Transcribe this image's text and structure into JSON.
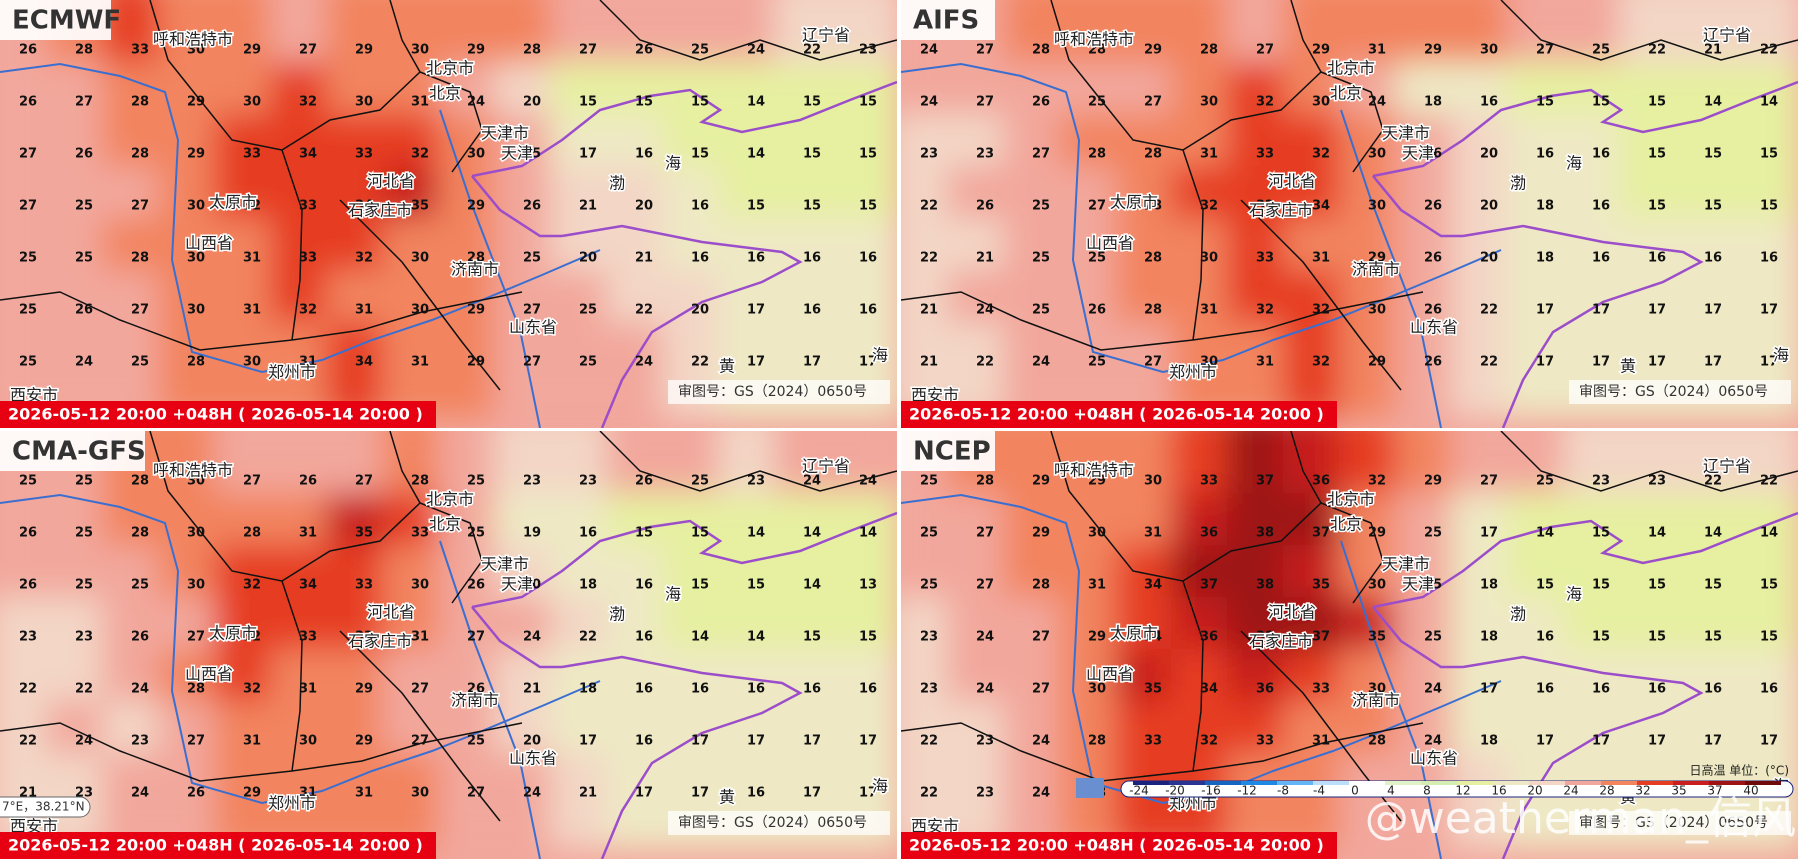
{
  "panels": [
    {
      "title": "ECMWF",
      "time": "2026-05-12 20:00 +048H ( 2026-05-14 20:00 )",
      "review_no": "审图号：GS（2024）0650号",
      "grid": [
        [
          26,
          28,
          33,
          30,
          29,
          27,
          29,
          30,
          29,
          28,
          27,
          26,
          25,
          24,
          22,
          23
        ],
        [
          26,
          27,
          28,
          29,
          30,
          32,
          30,
          31,
          24,
          20,
          15,
          15,
          15,
          14,
          15,
          15
        ],
        [
          27,
          26,
          28,
          29,
          33,
          34,
          33,
          32,
          30,
          25,
          17,
          16,
          15,
          14,
          15,
          15
        ],
        [
          27,
          25,
          27,
          30,
          32,
          33,
          34,
          35,
          29,
          26,
          21,
          20,
          16,
          15,
          15,
          15
        ],
        [
          25,
          25,
          28,
          30,
          31,
          33,
          32,
          30,
          28,
          25,
          20,
          21,
          16,
          16,
          16,
          16
        ],
        [
          25,
          26,
          27,
          30,
          31,
          32,
          31,
          30,
          29,
          27,
          25,
          22,
          20,
          17,
          16,
          16
        ],
        [
          25,
          24,
          25,
          28,
          30,
          31,
          34,
          31,
          29,
          27,
          25,
          24,
          22,
          17,
          17,
          17
        ]
      ]
    },
    {
      "title": "AIFS",
      "time": "2026-05-12 20:00 +048H ( 2026-05-14 20:00 )",
      "review_no": "审图号：GS（2024）0650号",
      "grid": [
        [
          24,
          27,
          28,
          28,
          29,
          28,
          27,
          29,
          31,
          29,
          30,
          27,
          25,
          22,
          21,
          22
        ],
        [
          24,
          27,
          26,
          25,
          27,
          30,
          32,
          30,
          24,
          18,
          16,
          15,
          15,
          15,
          14,
          14
        ],
        [
          23,
          23,
          27,
          28,
          28,
          31,
          33,
          32,
          30,
          26,
          20,
          16,
          16,
          15,
          15,
          15
        ],
        [
          22,
          26,
          25,
          27,
          28,
          32,
          32,
          34,
          30,
          26,
          20,
          18,
          16,
          15,
          15,
          15
        ],
        [
          22,
          21,
          25,
          25,
          28,
          30,
          33,
          31,
          29,
          26,
          20,
          18,
          16,
          16,
          16,
          16
        ],
        [
          21,
          24,
          25,
          26,
          28,
          31,
          32,
          32,
          30,
          26,
          22,
          17,
          17,
          17,
          17,
          17
        ],
        [
          21,
          22,
          24,
          25,
          27,
          30,
          31,
          32,
          29,
          26,
          22,
          17,
          17,
          17,
          17,
          17
        ]
      ]
    },
    {
      "title": "CMA-GFS",
      "time": "2026-05-12 20:00 +048H ( 2026-05-14 20:00 )",
      "review_no": "审图号：GS（2024）0650号",
      "grid": [
        [
          25,
          25,
          28,
          30,
          27,
          26,
          27,
          28,
          25,
          23,
          23,
          26,
          25,
          23,
          24,
          24
        ],
        [
          26,
          25,
          28,
          30,
          28,
          31,
          35,
          33,
          25,
          19,
          16,
          15,
          15,
          14,
          14,
          14
        ],
        [
          26,
          25,
          25,
          30,
          32,
          34,
          33,
          30,
          26,
          20,
          18,
          16,
          15,
          15,
          14,
          13
        ],
        [
          23,
          23,
          26,
          27,
          32,
          33,
          33,
          31,
          27,
          24,
          22,
          16,
          14,
          14,
          15,
          15
        ],
        [
          22,
          22,
          24,
          28,
          32,
          31,
          29,
          27,
          26,
          21,
          18,
          16,
          16,
          16,
          16,
          16
        ],
        [
          22,
          24,
          23,
          27,
          31,
          30,
          29,
          27,
          25,
          20,
          17,
          16,
          17,
          17,
          17,
          17
        ],
        [
          21,
          23,
          24,
          26,
          29,
          31,
          31,
          30,
          27,
          24,
          21,
          17,
          17,
          16,
          17,
          17
        ]
      ]
    },
    {
      "title": "NCEP",
      "time": "2026-05-12 20:00 +048H ( 2026-05-14 20:00 )",
      "review_no": "审图号：GS（2024）0650号",
      "grid": [
        [
          25,
          28,
          29,
          29,
          30,
          33,
          37,
          36,
          32,
          29,
          27,
          25,
          23,
          23,
          22,
          22
        ],
        [
          25,
          27,
          29,
          30,
          31,
          36,
          38,
          37,
          29,
          25,
          17,
          14,
          15,
          14,
          14,
          14
        ],
        [
          25,
          27,
          28,
          31,
          34,
          37,
          38,
          35,
          30,
          25,
          18,
          15,
          15,
          15,
          15,
          15
        ],
        [
          23,
          24,
          27,
          29,
          34,
          36,
          38,
          37,
          35,
          25,
          18,
          16,
          15,
          15,
          15,
          15
        ],
        [
          23,
          24,
          27,
          30,
          35,
          34,
          36,
          33,
          30,
          24,
          17,
          16,
          16,
          16,
          16,
          16
        ],
        [
          22,
          23,
          24,
          28,
          33,
          32,
          33,
          31,
          28,
          24,
          18,
          17,
          17,
          17,
          17,
          17
        ],
        [
          22,
          23,
          24,
          28,
          32,
          32,
          31,
          30,
          27,
          24,
          20,
          17,
          17,
          17,
          17,
          17
        ]
      ]
    }
  ],
  "places": [
    "呼和浩特市",
    "北京市",
    "北京",
    "天津市",
    "天津",
    "河北省",
    "石家庄市",
    "太原市",
    "山西省",
    "济南市",
    "郑州市",
    "西安市",
    "辽宁省",
    "山东省",
    "渤",
    "海",
    "黄",
    "海"
  ],
  "legend": {
    "title": "日高温 单位：(°C)",
    "levels": [
      -24,
      -20,
      -16,
      -12,
      -8,
      -4,
      0,
      4,
      8,
      12,
      16,
      20,
      24,
      28,
      32,
      35,
      37,
      40
    ],
    "colors": [
      "#1a237e",
      "#283593",
      "#1565c0",
      "#1e88e5",
      "#64b5f6",
      "#bbdefb",
      "#ffffff",
      "#e0f2c8",
      "#d4edb0",
      "#e6f0a0",
      "#eee9c4",
      "#f3d6c6",
      "#f2a79c",
      "#f2845e",
      "#e63c22",
      "#c81e1e",
      "#9e1414",
      "#6e0a0a"
    ]
  },
  "coord_readout": "7°E，38.21°N",
  "watermark": "@weatherman_信风"
}
